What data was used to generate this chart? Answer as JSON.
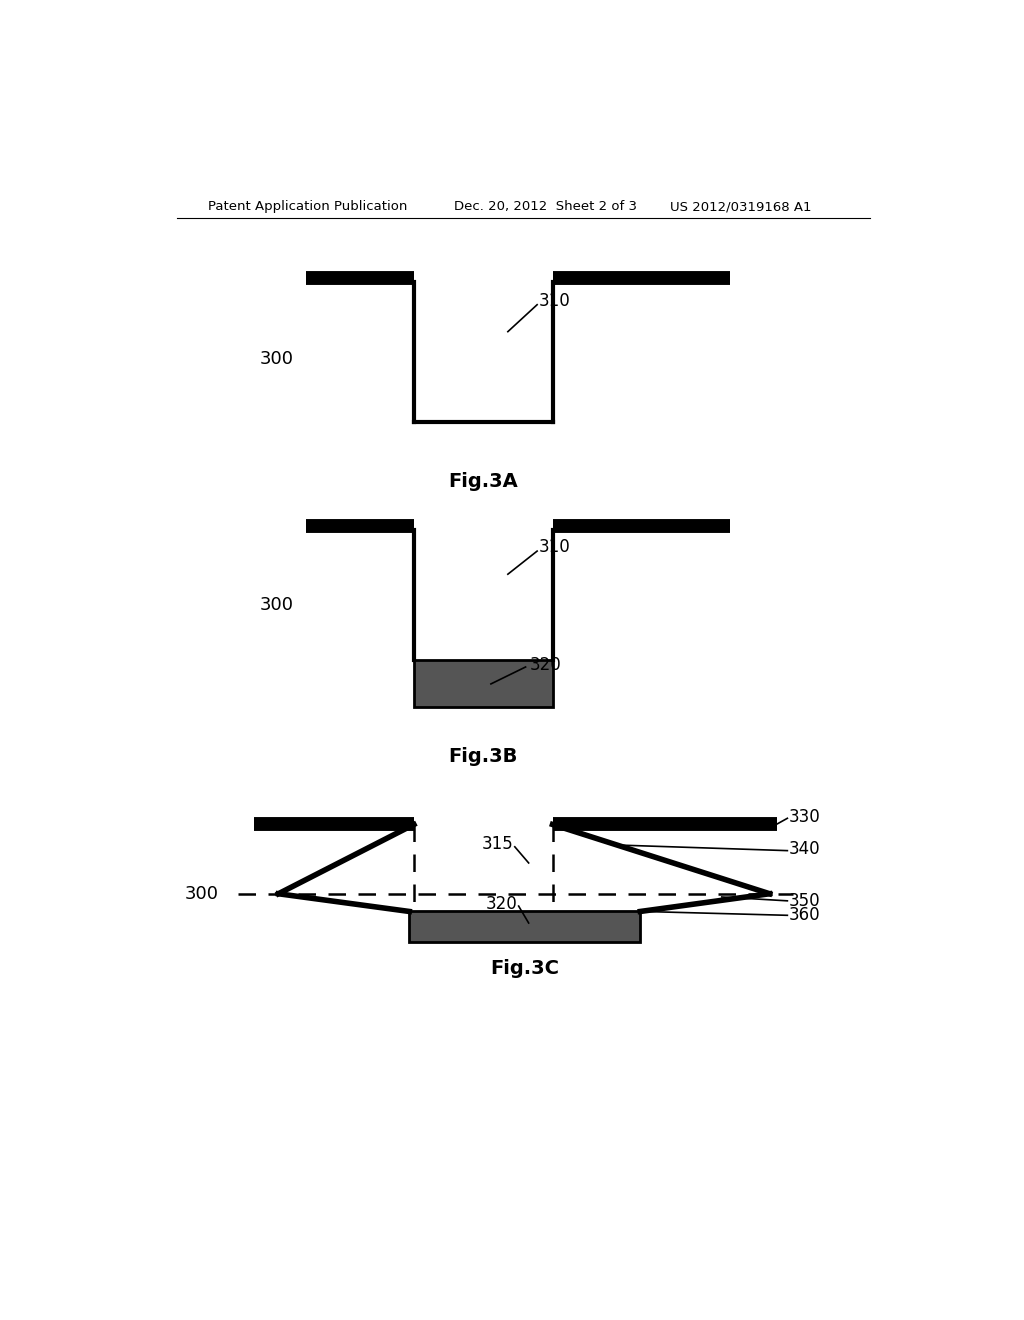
{
  "bg_color": "#ffffff",
  "line_color": "#000000",
  "gray_fill": "#555555",
  "header_left": "Patent Application Publication",
  "header_mid": "Dec. 20, 2012  Sheet 2 of 3",
  "header_right": "US 2012/0319168 A1",
  "fig3a_label": "Fig.3A",
  "fig3b_label": "Fig.3B",
  "fig3c_label": "Fig.3C",
  "lw_thick_bar": 10,
  "lw_wall": 3.0,
  "lw_fill_edge": 2.0,
  "lw_dash": 1.8,
  "lw_leader": 1.2
}
